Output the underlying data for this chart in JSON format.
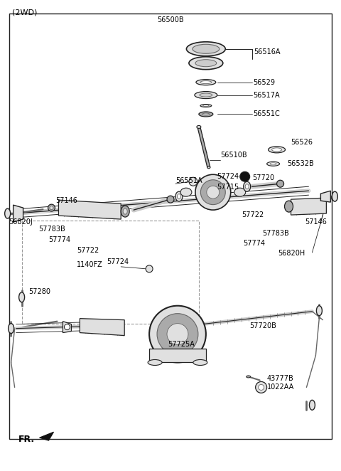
{
  "bg_color": "#ffffff",
  "line_color": "#000000",
  "figsize": [
    4.8,
    6.62
  ],
  "dpi": 100,
  "title": "(2WD)",
  "part_label_56500B": "56500B",
  "part_label_56516A": "56516A",
  "part_label_56529": "56529",
  "part_label_56517A": "56517A",
  "part_label_56551C": "56551C",
  "part_label_56510B": "56510B",
  "part_label_56526": "56526",
  "part_label_56551A": "56551A",
  "part_label_56532B": "56532B",
  "part_label_57720": "57720",
  "part_label_57715": "57715",
  "part_label_57146L": "57146",
  "part_label_56820J": "56820J",
  "part_label_57783BL": "57783B",
  "part_label_57774L": "57774",
  "part_label_57722L": "57722",
  "part_label_57724L": "57724",
  "part_label_1140FZ": "1140FZ",
  "part_label_57280": "57280",
  "part_label_57724R": "57724",
  "part_label_57722R": "57722",
  "part_label_57146R": "57146",
  "part_label_57774R": "57774",
  "part_label_57783BR": "57783B",
  "part_label_56820H": "56820H",
  "part_label_57725A": "57725A",
  "part_label_57720B": "57720B",
  "part_label_43777B": "43777B",
  "part_label_1022AA": "1022AA",
  "part_label_FR": "FR.",
  "gray_light": "#cccccc",
  "gray_mid": "#999999",
  "gray_dark": "#555555",
  "gray_fill": "#e8e8e8"
}
